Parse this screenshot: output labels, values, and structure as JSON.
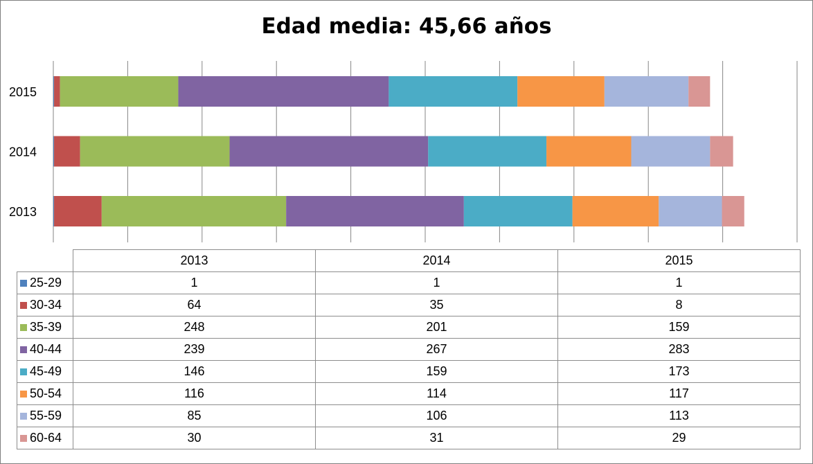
{
  "chart_data": {
    "type": "bar",
    "orientation": "horizontal",
    "stacked": true,
    "title": "Edad media: 45,66 años",
    "categories": [
      "2013",
      "2014",
      "2015"
    ],
    "xlim": [
      0,
      1000
    ],
    "grid": true,
    "legend": "data-table-below",
    "series": [
      {
        "name": "25-29",
        "color": "#4F81BD",
        "values": [
          1,
          1,
          1
        ]
      },
      {
        "name": "30-34",
        "color": "#C0504D",
        "values": [
          64,
          35,
          8
        ]
      },
      {
        "name": "35-39",
        "color": "#9BBB59",
        "values": [
          248,
          201,
          159
        ]
      },
      {
        "name": "40-44",
        "color": "#8064A2",
        "values": [
          239,
          267,
          283
        ]
      },
      {
        "name": "45-49",
        "color": "#4BACC6",
        "values": [
          146,
          159,
          173
        ]
      },
      {
        "name": "50-54",
        "color": "#F79646",
        "values": [
          116,
          114,
          117
        ]
      },
      {
        "name": "55-59",
        "color": "#A5B5DC",
        "values": [
          85,
          106,
          113
        ]
      },
      {
        "name": "60-64",
        "color": "#D99694",
        "values": [
          30,
          31,
          29
        ]
      }
    ]
  }
}
